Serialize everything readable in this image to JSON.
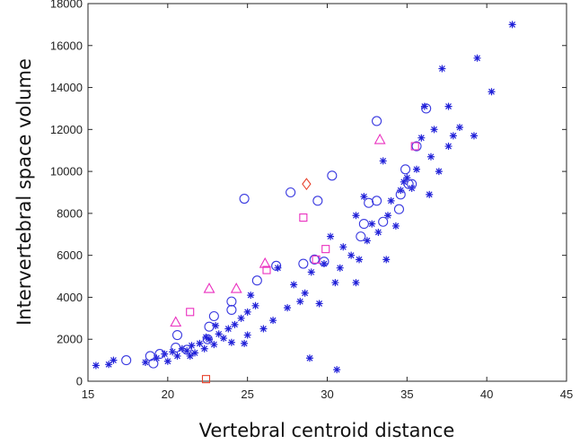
{
  "chart_data": {
    "type": "scatter",
    "xlabel": "Vertebral centroid distance",
    "ylabel": "Intervertebral space volume",
    "xlim": [
      15,
      45
    ],
    "ylim": [
      0,
      18000
    ],
    "x_ticks": [
      15,
      20,
      25,
      30,
      35,
      40,
      45
    ],
    "y_ticks": [
      0,
      2000,
      4000,
      6000,
      8000,
      10000,
      12000,
      14000,
      16000,
      18000
    ],
    "grid": false,
    "series": [
      {
        "marker": "asterisk",
        "color": "#2020d8",
        "points": [
          [
            15.5,
            750
          ],
          [
            16.3,
            800
          ],
          [
            16.6,
            1000
          ],
          [
            18.6,
            900
          ],
          [
            19.3,
            1100
          ],
          [
            19.8,
            1300
          ],
          [
            20.0,
            950
          ],
          [
            20.3,
            1400
          ],
          [
            20.6,
            1200
          ],
          [
            20.9,
            1550
          ],
          [
            21.2,
            1450
          ],
          [
            21.5,
            1700
          ],
          [
            21.7,
            1350
          ],
          [
            22.0,
            1800
          ],
          [
            22.3,
            1550
          ],
          [
            22.6,
            2000
          ],
          [
            22.9,
            1750
          ],
          [
            23.2,
            2250
          ],
          [
            23.5,
            2050
          ],
          [
            23.8,
            2500
          ],
          [
            24.0,
            1850
          ],
          [
            24.2,
            2700
          ],
          [
            24.6,
            3000
          ],
          [
            24.8,
            1800
          ],
          [
            25.0,
            3300
          ],
          [
            25.2,
            4100
          ],
          [
            25.5,
            3600
          ],
          [
            25.0,
            2200
          ],
          [
            26.0,
            2500
          ],
          [
            26.6,
            2900
          ],
          [
            27.5,
            3500
          ],
          [
            27.9,
            4600
          ],
          [
            28.3,
            3800
          ],
          [
            28.6,
            4200
          ],
          [
            29.0,
            5200
          ],
          [
            29.5,
            3700
          ],
          [
            29.8,
            5600
          ],
          [
            30.2,
            6900
          ],
          [
            30.5,
            4700
          ],
          [
            30.8,
            5400
          ],
          [
            31.0,
            6400
          ],
          [
            31.5,
            6000
          ],
          [
            31.8,
            4700
          ],
          [
            32.0,
            5800
          ],
          [
            32.3,
            8800
          ],
          [
            32.5,
            6700
          ],
          [
            32.8,
            7500
          ],
          [
            33.2,
            7100
          ],
          [
            33.5,
            10500
          ],
          [
            33.7,
            5800
          ],
          [
            34.0,
            8600
          ],
          [
            34.3,
            7400
          ],
          [
            34.6,
            9100
          ],
          [
            35.0,
            9700
          ],
          [
            35.3,
            9200
          ],
          [
            35.6,
            10100
          ],
          [
            35.9,
            11600
          ],
          [
            36.1,
            13100
          ],
          [
            36.5,
            10700
          ],
          [
            36.7,
            12000
          ],
          [
            37.0,
            10000
          ],
          [
            37.2,
            14900
          ],
          [
            37.6,
            11200
          ],
          [
            37.9,
            11700
          ],
          [
            38.3,
            12100
          ],
          [
            39.2,
            11700
          ],
          [
            39.4,
            15400
          ],
          [
            40.3,
            13800
          ],
          [
            41.6,
            17000
          ],
          [
            28.9,
            1100
          ],
          [
            30.6,
            550
          ],
          [
            33.8,
            7900
          ],
          [
            34.8,
            9500
          ],
          [
            36.4,
            8900
          ],
          [
            37.6,
            13100
          ],
          [
            31.8,
            7900
          ],
          [
            26.9,
            5400
          ],
          [
            22.4,
            2100
          ],
          [
            21.4,
            1200
          ],
          [
            23.0,
            2650
          ]
        ]
      },
      {
        "marker": "circle",
        "color": "#3a3ae0",
        "points": [
          [
            17.4,
            1000
          ],
          [
            18.9,
            1200
          ],
          [
            19.1,
            850
          ],
          [
            19.5,
            1300
          ],
          [
            20.5,
            1600
          ],
          [
            20.6,
            2200
          ],
          [
            21.2,
            1500
          ],
          [
            22.5,
            2000
          ],
          [
            22.6,
            2600
          ],
          [
            22.9,
            3100
          ],
          [
            24.0,
            3400
          ],
          [
            24.0,
            3800
          ],
          [
            24.8,
            8700
          ],
          [
            25.6,
            4800
          ],
          [
            26.8,
            5500
          ],
          [
            27.7,
            9000
          ],
          [
            28.5,
            5600
          ],
          [
            29.4,
            8600
          ],
          [
            29.8,
            5700
          ],
          [
            30.3,
            9800
          ],
          [
            32.1,
            6900
          ],
          [
            32.3,
            7500
          ],
          [
            32.6,
            8500
          ],
          [
            33.1,
            8600
          ],
          [
            33.1,
            12400
          ],
          [
            33.5,
            7600
          ],
          [
            34.5,
            8200
          ],
          [
            34.9,
            10100
          ],
          [
            35.1,
            9400
          ],
          [
            35.6,
            11200
          ],
          [
            36.2,
            13000
          ],
          [
            35.3,
            9400
          ],
          [
            29.2,
            5800
          ],
          [
            34.6,
            8900
          ]
        ]
      },
      {
        "marker": "square",
        "color": "#ea2fbf",
        "points": [
          [
            21.4,
            3300
          ],
          [
            26.2,
            5300
          ],
          [
            28.5,
            7800
          ],
          [
            29.3,
            5800
          ],
          [
            29.9,
            6300
          ],
          [
            35.5,
            11200
          ]
        ]
      },
      {
        "marker": "triangle",
        "color": "#ea2fbf",
        "points": [
          [
            20.5,
            2800
          ],
          [
            22.6,
            4400
          ],
          [
            24.3,
            4400
          ],
          [
            26.1,
            5600
          ],
          [
            33.3,
            11500
          ]
        ]
      },
      {
        "marker": "diamond",
        "color": "#e8402a",
        "points": [
          [
            28.7,
            9400
          ]
        ]
      },
      {
        "marker": "square",
        "color": "#e8402a",
        "points": [
          [
            22.4,
            100
          ]
        ]
      }
    ]
  }
}
